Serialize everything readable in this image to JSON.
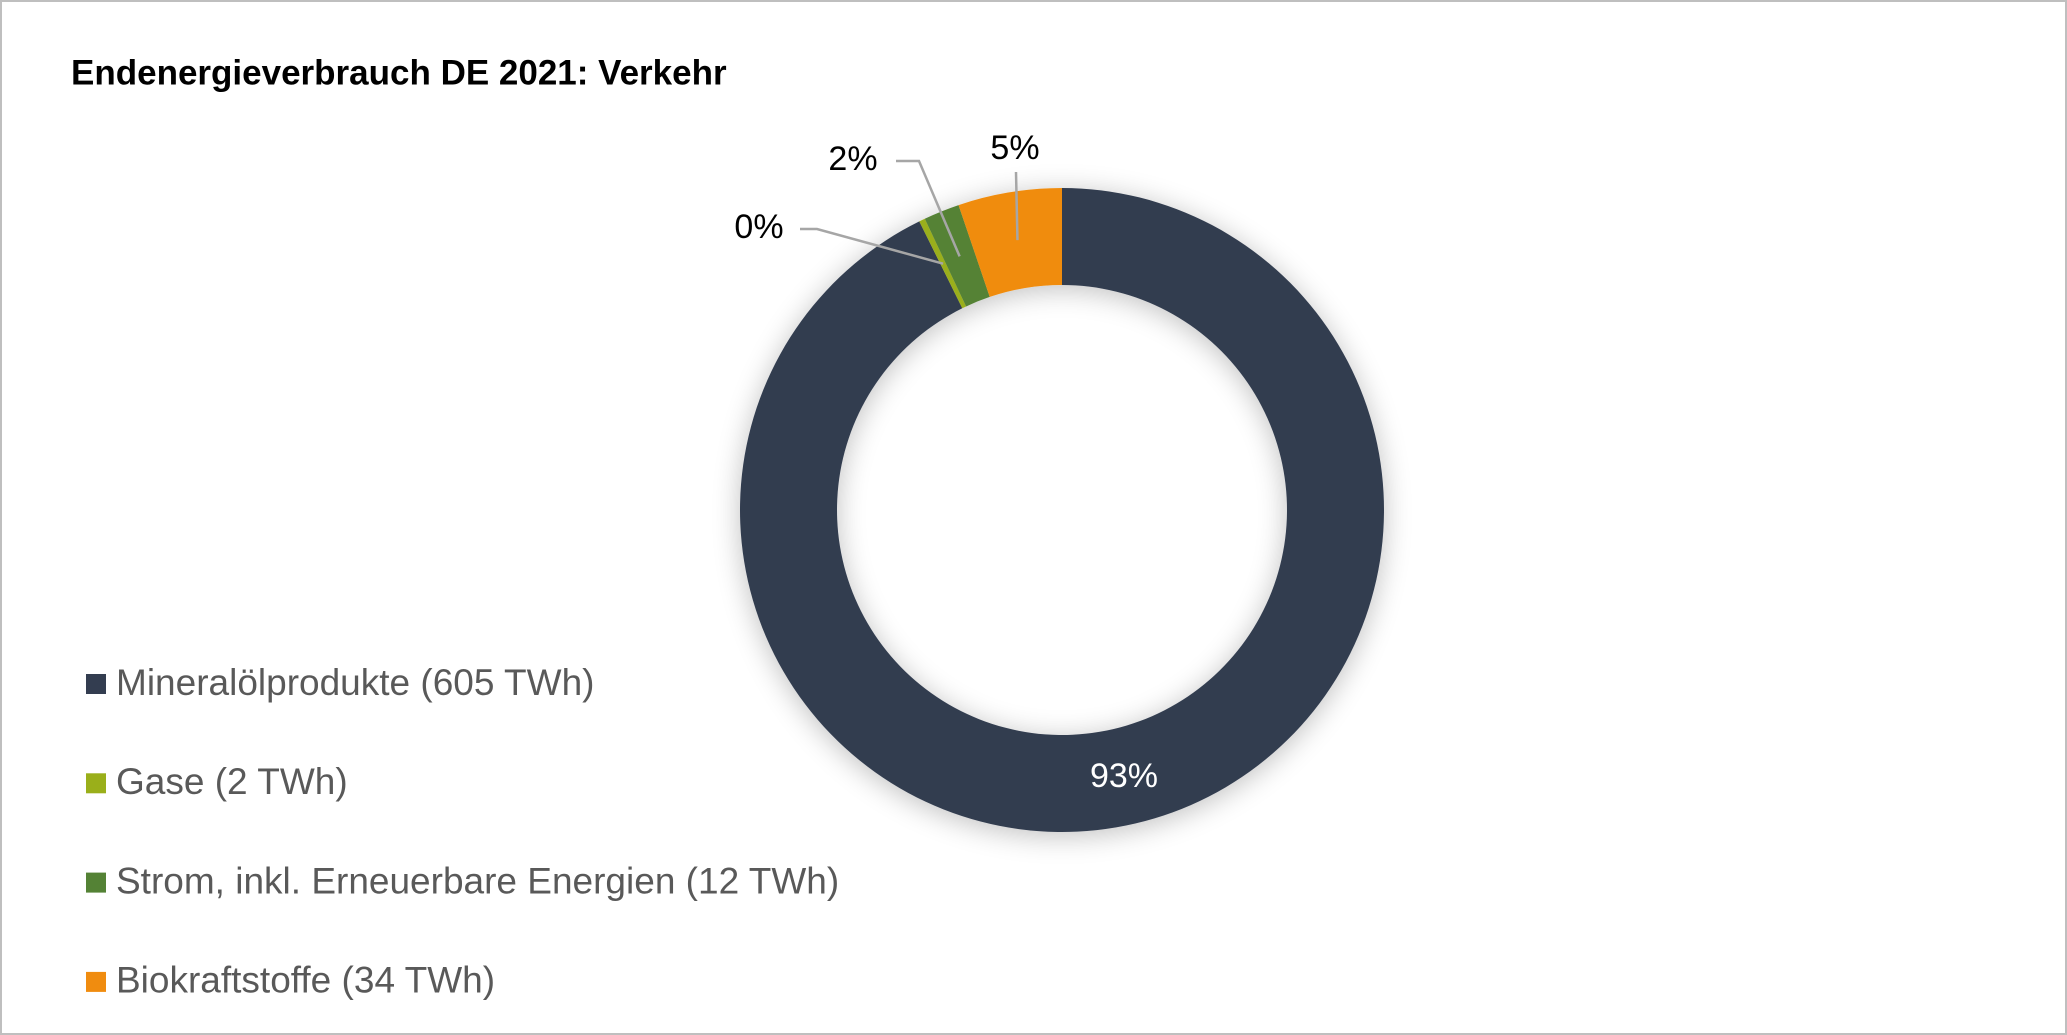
{
  "chart_data": {
    "type": "donut",
    "title": "Endenergieverbrauch DE 2021: Verkehr",
    "categories": [
      "Mineralölprodukte (605 TWh)",
      "Gase (2 TWh)",
      "Strom, inkl. Erneuerbare Energien (12 TWh)",
      "Biokraftstoffe (34 TWh)"
    ],
    "values": [
      92.6,
      0.3,
      1.8,
      5.2
    ],
    "value_labels": [
      "93%",
      "0%",
      "2%",
      "5%"
    ],
    "colors": [
      "#333d50",
      "#9aaf1a",
      "#548235",
      "#f08c0f"
    ],
    "legend": "left"
  }
}
